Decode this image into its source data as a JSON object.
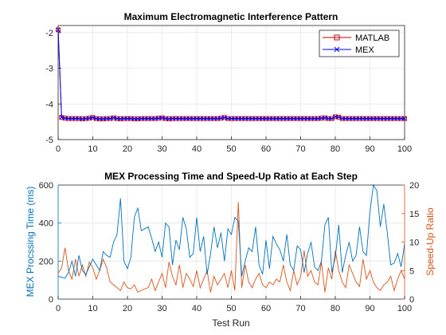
{
  "colors": {
    "matlab": "#cc0000",
    "mex": "#0000ff",
    "time": "#0072bd",
    "ratio": "#d95319",
    "axis": "#262626",
    "grid": "#e6e6e6"
  },
  "chart_data": [
    {
      "type": "line",
      "title": "Maximum Electromagnetic Interference Pattern",
      "xlim": [
        0,
        100
      ],
      "ylim": [
        -5,
        -1.8
      ],
      "xticks": [
        "0",
        "10",
        "20",
        "30",
        "40",
        "50",
        "60",
        "70",
        "80",
        "90",
        "100"
      ],
      "yticks": [
        "-5",
        "-4",
        "-3",
        "-2"
      ],
      "grid": true,
      "legend_position": "top-right",
      "series": [
        {
          "name": "MATLAB",
          "marker": "square",
          "values": [
            -1.92,
            -4.38,
            -4.4,
            -4.41,
            -4.41,
            -4.41,
            -4.41,
            -4.42,
            -4.41,
            -4.4,
            -4.38,
            -4.41,
            -4.42,
            -4.42,
            -4.41,
            -4.41,
            -4.39,
            -4.41,
            -4.42,
            -4.41,
            -4.41,
            -4.41,
            -4.42,
            -4.42,
            -4.41,
            -4.41,
            -4.41,
            -4.41,
            -4.41,
            -4.4,
            -4.39,
            -4.41,
            -4.42,
            -4.41,
            -4.41,
            -4.41,
            -4.41,
            -4.41,
            -4.41,
            -4.41,
            -4.41,
            -4.41,
            -4.41,
            -4.41,
            -4.41,
            -4.41,
            -4.41,
            -4.4,
            -4.38,
            -4.41,
            -4.41,
            -4.41,
            -4.41,
            -4.41,
            -4.41,
            -4.41,
            -4.41,
            -4.41,
            -4.41,
            -4.41,
            -4.41,
            -4.41,
            -4.41,
            -4.41,
            -4.41,
            -4.41,
            -4.41,
            -4.41,
            -4.41,
            -4.41,
            -4.41,
            -4.41,
            -4.41,
            -4.41,
            -4.41,
            -4.41,
            -4.4,
            -4.39,
            -4.41,
            -4.41,
            -4.36,
            -4.37,
            -4.41,
            -4.41,
            -4.41,
            -4.41,
            -4.41,
            -4.41,
            -4.41,
            -4.41,
            -4.41,
            -4.41,
            -4.41,
            -4.41,
            -4.41,
            -4.41,
            -4.41,
            -4.41,
            -4.41,
            -4.41,
            -4.41
          ]
        },
        {
          "name": "MEX",
          "marker": "x",
          "values": [
            -1.92,
            -4.38,
            -4.4,
            -4.41,
            -4.41,
            -4.41,
            -4.41,
            -4.42,
            -4.41,
            -4.4,
            -4.38,
            -4.41,
            -4.42,
            -4.42,
            -4.41,
            -4.41,
            -4.39,
            -4.41,
            -4.42,
            -4.41,
            -4.41,
            -4.41,
            -4.42,
            -4.42,
            -4.41,
            -4.41,
            -4.41,
            -4.41,
            -4.41,
            -4.4,
            -4.39,
            -4.41,
            -4.42,
            -4.41,
            -4.41,
            -4.41,
            -4.41,
            -4.41,
            -4.41,
            -4.41,
            -4.41,
            -4.41,
            -4.41,
            -4.41,
            -4.41,
            -4.41,
            -4.41,
            -4.4,
            -4.38,
            -4.41,
            -4.41,
            -4.41,
            -4.41,
            -4.41,
            -4.41,
            -4.41,
            -4.41,
            -4.41,
            -4.41,
            -4.41,
            -4.41,
            -4.41,
            -4.41,
            -4.41,
            -4.41,
            -4.41,
            -4.41,
            -4.41,
            -4.41,
            -4.41,
            -4.41,
            -4.41,
            -4.41,
            -4.41,
            -4.41,
            -4.41,
            -4.4,
            -4.39,
            -4.41,
            -4.41,
            -4.36,
            -4.37,
            -4.41,
            -4.41,
            -4.41,
            -4.41,
            -4.41,
            -4.41,
            -4.41,
            -4.41,
            -4.41,
            -4.41,
            -4.41,
            -4.41,
            -4.41,
            -4.41,
            -4.41,
            -4.41,
            -4.41,
            -4.41,
            -4.41
          ]
        }
      ]
    },
    {
      "type": "line",
      "title": "MEX Processing Time and Speed-Up Ratio at Each Step",
      "xlabel": "Test Run",
      "ylabel_left": "MEX Procssing Time (ms)",
      "ylabel_right": "Speed-Up Ratio",
      "xlim": [
        0,
        100
      ],
      "ylim_left": [
        0,
        600
      ],
      "ylim_right": [
        0,
        20
      ],
      "xticks": [
        "0",
        "10",
        "20",
        "30",
        "40",
        "50",
        "60",
        "70",
        "80",
        "90",
        "100"
      ],
      "yticks_left": [
        "0",
        "200",
        "400",
        "600"
      ],
      "yticks_right": [
        "0",
        "5",
        "10",
        "15",
        "20"
      ],
      "grid": true,
      "series": [
        {
          "axis": "left",
          "values": [
            120,
            115,
            110,
            140,
            200,
            120,
            230,
            150,
            130,
            170,
            210,
            180,
            150,
            250,
            230,
            220,
            300,
            340,
            530,
            200,
            160,
            220,
            430,
            480,
            360,
            370,
            380,
            320,
            250,
            300,
            220,
            400,
            380,
            180,
            310,
            260,
            430,
            370,
            220,
            240,
            430,
            250,
            330,
            130,
            240,
            380,
            270,
            350,
            200,
            370,
            340,
            430,
            410,
            120,
            200,
            270,
            250,
            380,
            180,
            130,
            310,
            160,
            330,
            290,
            260,
            200,
            340,
            180,
            150,
            280,
            260,
            140,
            240,
            300,
            170,
            150,
            200,
            390,
            430,
            140,
            220,
            390,
            140,
            230,
            300,
            200,
            230,
            380,
            250,
            230,
            460,
            610,
            570,
            380,
            500,
            350,
            180,
            190,
            240,
            170,
            290
          ]
        },
        {
          "axis": "right",
          "values": [
            4.5,
            5.5,
            9,
            5,
            3.5,
            7,
            4,
            6,
            4,
            6.5,
            5.5,
            3.5,
            5,
            7,
            5.5,
            3,
            2.5,
            2,
            1.5,
            3,
            2,
            1.8,
            2.5,
            1.2,
            1.5,
            1.8,
            2,
            3.5,
            1.5,
            3,
            4.5,
            2,
            6.5,
            4,
            2.5,
            6,
            2,
            4.5,
            3.5,
            2.2,
            5,
            2,
            3.5,
            5,
            1.2,
            4,
            2.5,
            3.5,
            4.5,
            2,
            5,
            1.5,
            17,
            2,
            6,
            3,
            2,
            3.5,
            4.5,
            2.5,
            2,
            3,
            2.5,
            3.5,
            3,
            6,
            3,
            1.5,
            5,
            2.5,
            4,
            8.5,
            4,
            5,
            3,
            2.5,
            6.5,
            1.2,
            5.5,
            3.5,
            8.5,
            5,
            3,
            2,
            6,
            4.5,
            3,
            2.2,
            7,
            3.5,
            5,
            3,
            2,
            1.5,
            2.5,
            3,
            4,
            1.5,
            3.5,
            5,
            3.5
          ]
        }
      ]
    }
  ]
}
